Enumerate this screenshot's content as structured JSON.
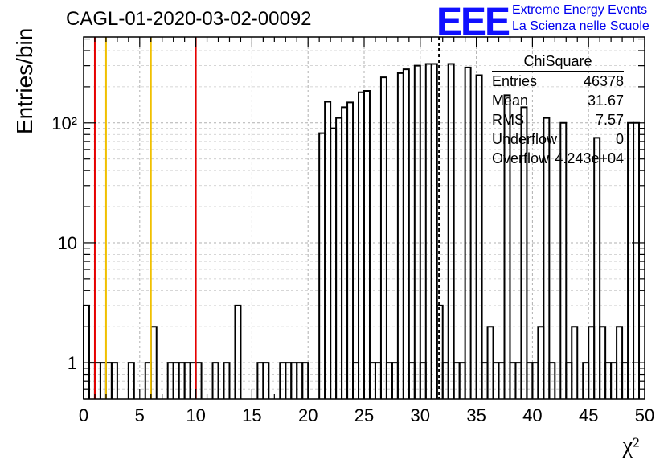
{
  "header": {
    "title": "CAGL-01-2020-03-02-00092",
    "logo": "EEE",
    "logo_line1": "Extreme Energy Events",
    "logo_line2": "La Scienza nelle Scuole"
  },
  "stats_box": {
    "name": "ChiSquare",
    "rows": [
      {
        "label": "Entries",
        "value": "46378"
      },
      {
        "label": "Mean",
        "value": "31.67"
      },
      {
        "label": "RMS",
        "value": "7.57"
      },
      {
        "label": "Underflow",
        "value": "0"
      },
      {
        "label": "Overflow",
        "value": "4.243e+04"
      }
    ]
  },
  "chart_data": {
    "type": "histogram",
    "ylabel": "Entries/bin",
    "xlabel": "χ²",
    "xlim": [
      0,
      50
    ],
    "ylim": [
      0.5,
      520
    ],
    "yscale": "log",
    "grid": true,
    "bin_width": 0.5,
    "x_ticks": [
      "0",
      "5",
      "10",
      "15",
      "20",
      "25",
      "30",
      "35",
      "40",
      "45",
      "50"
    ],
    "y_ticks": [
      {
        "value": 1,
        "label": "1"
      },
      {
        "value": 10,
        "label": "10"
      },
      {
        "value": 100,
        "label": "10²"
      }
    ],
    "bins": [
      [
        0.0,
        3
      ],
      [
        0.5,
        1
      ],
      [
        1.0,
        1
      ],
      [
        1.5,
        1
      ],
      [
        2.0,
        1
      ],
      [
        2.5,
        1
      ],
      [
        4.0,
        1
      ],
      [
        5.5,
        1
      ],
      [
        6.0,
        2
      ],
      [
        7.5,
        1
      ],
      [
        8.0,
        1
      ],
      [
        8.5,
        1
      ],
      [
        9.0,
        1
      ],
      [
        9.5,
        1
      ],
      [
        10.0,
        1
      ],
      [
        11.5,
        1
      ],
      [
        12.5,
        1
      ],
      [
        13.5,
        3
      ],
      [
        15.5,
        1
      ],
      [
        16.0,
        1
      ],
      [
        17.5,
        1
      ],
      [
        18.0,
        1
      ],
      [
        18.5,
        1
      ],
      [
        19.0,
        1
      ],
      [
        19.5,
        1
      ],
      [
        21.0,
        82
      ],
      [
        21.5,
        150
      ],
      [
        22.0,
        90
      ],
      [
        22.5,
        110
      ],
      [
        23.0,
        135
      ],
      [
        23.5,
        148
      ],
      [
        24.0,
        1
      ],
      [
        24.5,
        180
      ],
      [
        25.0,
        185
      ],
      [
        25.5,
        1
      ],
      [
        26.0,
        1
      ],
      [
        26.5,
        240
      ],
      [
        27.0,
        1
      ],
      [
        27.5,
        1
      ],
      [
        28.0,
        260
      ],
      [
        28.5,
        280
      ],
      [
        29.0,
        1
      ],
      [
        29.5,
        300
      ],
      [
        30.0,
        1
      ],
      [
        30.5,
        310
      ],
      [
        31.0,
        310
      ],
      [
        31.5,
        3
      ],
      [
        32.0,
        1
      ],
      [
        32.5,
        310
      ],
      [
        33.0,
        1
      ],
      [
        33.5,
        1
      ],
      [
        34.0,
        290
      ],
      [
        35.0,
        250
      ],
      [
        35.5,
        1
      ],
      [
        36.0,
        2
      ],
      [
        36.5,
        1
      ],
      [
        37.0,
        1
      ],
      [
        37.5,
        170
      ],
      [
        38.0,
        1
      ],
      [
        38.5,
        1
      ],
      [
        39.0,
        135
      ],
      [
        39.5,
        1
      ],
      [
        40.0,
        1
      ],
      [
        40.5,
        2
      ],
      [
        41.0,
        110
      ],
      [
        41.5,
        1
      ],
      [
        42.5,
        100
      ],
      [
        43.0,
        1
      ],
      [
        43.5,
        2
      ],
      [
        44.5,
        1
      ],
      [
        45.0,
        2
      ],
      [
        45.5,
        75
      ],
      [
        46.0,
        2
      ],
      [
        46.5,
        1
      ],
      [
        47.0,
        1
      ],
      [
        47.5,
        2
      ],
      [
        48.0,
        1
      ],
      [
        48.5,
        100
      ],
      [
        49.0,
        100
      ]
    ],
    "lines": [
      {
        "x": 1.0,
        "color": "#e60000",
        "style": "solid"
      },
      {
        "x": 2.0,
        "color": "#f0c000",
        "style": "solid"
      },
      {
        "x": 6.0,
        "color": "#f0c000",
        "style": "solid"
      },
      {
        "x": 10.0,
        "color": "#e60000",
        "style": "solid"
      },
      {
        "x": 31.67,
        "color": "#000000",
        "style": "dashed"
      }
    ]
  }
}
